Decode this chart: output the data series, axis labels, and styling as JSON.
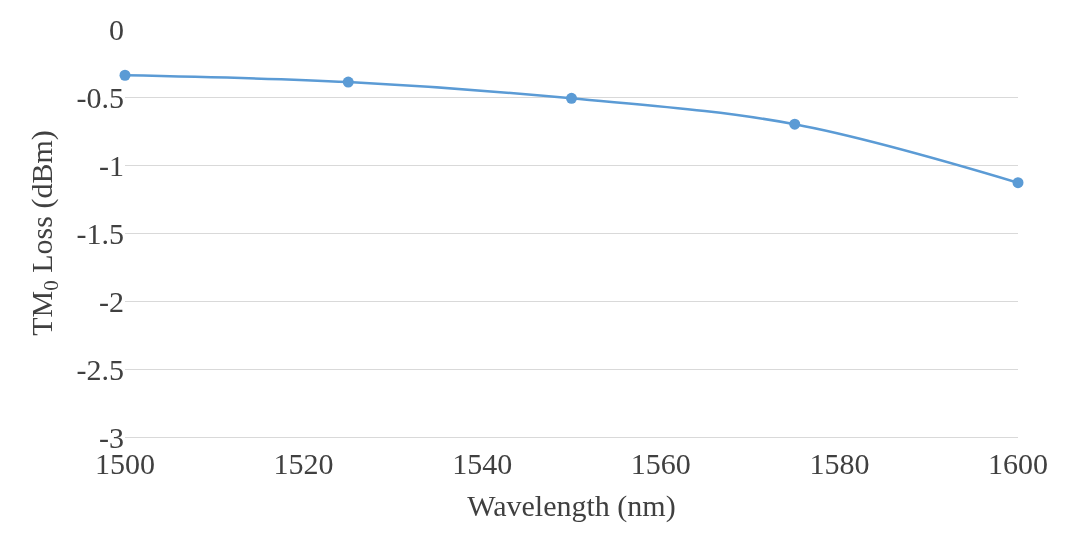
{
  "chart_data": {
    "type": "line",
    "xlabel": "Wavelength (nm)",
    "ylabel": "TM$_{0}$ Loss (dBm)",
    "x": [
      1500,
      1525,
      1550,
      1575,
      1600
    ],
    "series": [
      {
        "color": "#5b9bd5",
        "values": [
          -0.34,
          -0.39,
          -0.51,
          -0.7,
          -1.13
        ]
      }
    ],
    "xlim": [
      1500,
      1600
    ],
    "xticks": [
      1500,
      1520,
      1540,
      1560,
      1580,
      1600
    ],
    "ylim": [
      -3,
      0
    ],
    "yticks": [
      -3,
      -2.5,
      -2,
      -1.5,
      -1,
      -0.5,
      0
    ],
    "grid": "y",
    "marker": "circle",
    "line_style": "solid",
    "legend": false
  }
}
